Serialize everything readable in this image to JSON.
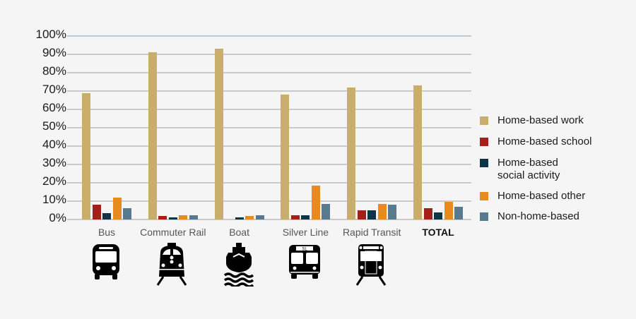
{
  "chart_data": {
    "type": "bar",
    "title": "",
    "xlabel": "",
    "ylabel": "",
    "ylim": [
      0,
      100
    ],
    "y_ticks": [
      "0%",
      "10%",
      "20%",
      "30%",
      "40%",
      "50%",
      "60%",
      "70%",
      "80%",
      "90%",
      "100%"
    ],
    "grid": true,
    "legend_position": "right",
    "categories": [
      "Bus",
      "Commuter Rail",
      "Boat",
      "Silver Line",
      "Rapid Transit",
      "TOTAL"
    ],
    "series": [
      {
        "name": "Home-based work",
        "color": "#c9ad6a",
        "values": [
          69,
          91,
          93,
          68,
          72,
          73
        ]
      },
      {
        "name": "Home-based school",
        "color": "#a31f17",
        "values": [
          8,
          2,
          0,
          2.5,
          5,
          6
        ]
      },
      {
        "name": "Home-based social activity",
        "color": "#0d3448",
        "values": [
          3.5,
          1,
          1,
          2.5,
          5,
          4
        ]
      },
      {
        "name": "Home-based other",
        "color": "#e98a1e",
        "values": [
          12,
          2.5,
          2,
          18.5,
          8.5,
          9.5
        ]
      },
      {
        "name": "Non-home-based",
        "color": "#587a8e",
        "values": [
          6,
          2.5,
          2.5,
          8.5,
          8,
          7
        ]
      }
    ]
  },
  "legend": {
    "items": [
      {
        "label": "Home-based work"
      },
      {
        "label": "Home-based school"
      },
      {
        "label": "Home-based\nsocial activity"
      },
      {
        "label": "Home-based other"
      },
      {
        "label": "Non-home-based"
      }
    ]
  },
  "icons": [
    "bus-icon",
    "commuter-rail-icon",
    "boat-icon",
    "silver-line-bus-icon",
    "rapid-transit-icon"
  ],
  "silver_line_sign": "SL"
}
